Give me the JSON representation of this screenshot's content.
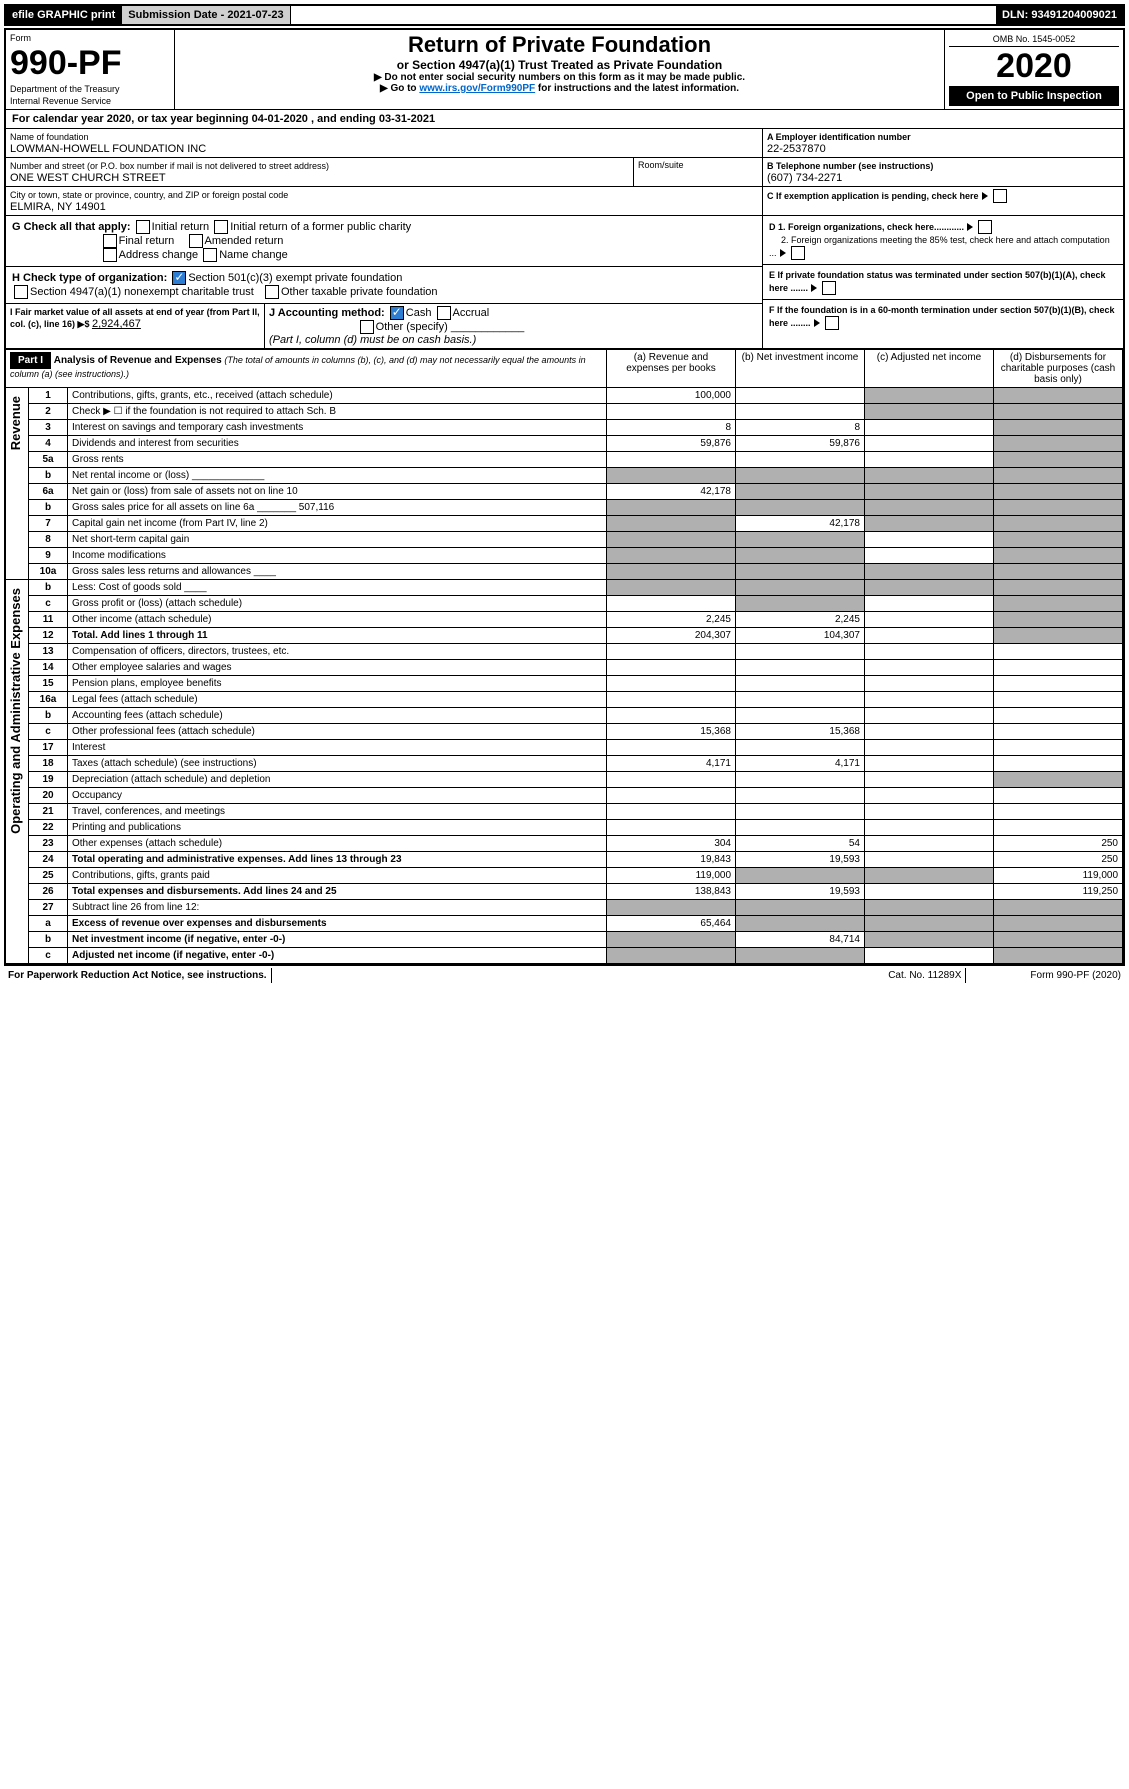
{
  "top": {
    "efile": "efile GRAPHIC print",
    "sub": "Submission Date - 2021-07-23",
    "dln": "DLN: 93491204009021"
  },
  "head": {
    "form": "Form",
    "num": "990-PF",
    "dept": "Department of the Treasury",
    "irs": "Internal Revenue Service",
    "title": "Return of Private Foundation",
    "subtitle": "or Section 4947(a)(1) Trust Treated as Private Foundation",
    "warn": "▶ Do not enter social security numbers on this form as it may be made public.",
    "go": "▶ Go to ",
    "url": "www.irs.gov/Form990PF",
    "go2": " for instructions and the latest information.",
    "omb": "OMB No. 1545-0052",
    "year": "2020",
    "open": "Open to Public Inspection"
  },
  "cal": {
    "pre": "For calendar year 2020, or tax year beginning ",
    "beg": "04-01-2020",
    "mid": " , and ending ",
    "end": "03-31-2021"
  },
  "id": {
    "namelbl": "Name of foundation",
    "name": "LOWMAN-HOWELL FOUNDATION INC",
    "addrlbl": "Number and street (or P.O. box number if mail is not delivered to street address)",
    "addr": "ONE WEST CHURCH STREET",
    "room": "Room/suite",
    "citylbl": "City or town, state or province, country, and ZIP or foreign postal code",
    "city": "ELMIRA, NY  14901",
    "alabel": "A Employer identification number",
    "a": "22-2537870",
    "blabel": "B Telephone number (see instructions)",
    "b": "(607) 734-2271",
    "c": "C If exemption application is pending, check here",
    "d1": "D 1. Foreign organizations, check here............",
    "d2": "2. Foreign organizations meeting the 85% test, check here and attach computation ...",
    "e": "E If private foundation status was terminated under section 507(b)(1)(A), check here .......",
    "f": "F If the foundation is in a 60-month termination under section 507(b)(1)(B), check here ........"
  },
  "g": {
    "lbl": "G Check all that apply:",
    "i1": "Initial return",
    "i2": "Initial return of a former public charity",
    "f": "Final return",
    "a": "Amended return",
    "ac": "Address change",
    "nc": "Name change"
  },
  "h": {
    "lbl": "H Check type of organization:",
    "s1": "Section 501(c)(3) exempt private foundation",
    "s2": "Section 4947(a)(1) nonexempt charitable trust",
    "s3": "Other taxable private foundation"
  },
  "i": {
    "lbl": "I Fair market value of all assets at end of year (from Part II, col. (c), line 16) ▶$ ",
    "val": "2,924,467"
  },
  "j": {
    "lbl": "J Accounting method:",
    "c": "Cash",
    "a": "Accrual",
    "o": "Other (specify)",
    "note": "(Part I, column (d) must be on cash basis.)"
  },
  "p1": {
    "part": "Part I",
    "title": "Analysis of Revenue and Expenses",
    "note": "(The total of amounts in columns (b), (c), and (d) may not necessarily equal the amounts in column (a) (see instructions).)",
    "ca": "(a)   Revenue and expenses per books",
    "cb": "(b)   Net investment income",
    "cc": "(c)   Adjusted net income",
    "cd": "(d)   Disbursements for charitable purposes (cash basis only)",
    "rev": "Revenue",
    "oae": "Operating and Administrative Expenses"
  },
  "rows": [
    {
      "n": "1",
      "t": "Contributions, gifts, grants, etc., received (attach schedule)",
      "a": "100,000",
      "b": "",
      "sh": [
        "c",
        "d"
      ]
    },
    {
      "n": "2",
      "t": "Check ▶ ☐ if the foundation is not required to attach Sch. B",
      "a": "",
      "b": "",
      "sh": [
        "c",
        "d"
      ]
    },
    {
      "n": "3",
      "t": "Interest on savings and temporary cash investments",
      "a": "8",
      "b": "8",
      "sh": [
        "d"
      ]
    },
    {
      "n": "4",
      "t": "Dividends and interest from securities",
      "a": "59,876",
      "b": "59,876",
      "sh": [
        "d"
      ]
    },
    {
      "n": "5a",
      "t": "Gross rents",
      "a": "",
      "b": "",
      "sh": [
        "d"
      ]
    },
    {
      "n": "b",
      "t": "Net rental income or (loss)  _____________",
      "a": "",
      "b": "",
      "sh": [
        "a",
        "b",
        "c",
        "d"
      ]
    },
    {
      "n": "6a",
      "t": "Net gain or (loss) from sale of assets not on line 10",
      "a": "42,178",
      "b": "",
      "sh": [
        "b",
        "c",
        "d"
      ]
    },
    {
      "n": "b",
      "t": "Gross sales price for all assets on line 6a _______ 507,116",
      "a": "",
      "b": "",
      "sh": [
        "a",
        "b",
        "c",
        "d"
      ]
    },
    {
      "n": "7",
      "t": "Capital gain net income (from Part IV, line 2)",
      "a": "",
      "b": "42,178",
      "sh": [
        "a",
        "c",
        "d"
      ]
    },
    {
      "n": "8",
      "t": "Net short-term capital gain",
      "a": "",
      "b": "",
      "sh": [
        "a",
        "b",
        "d"
      ]
    },
    {
      "n": "9",
      "t": "Income modifications",
      "a": "",
      "b": "",
      "sh": [
        "a",
        "b",
        "d"
      ]
    },
    {
      "n": "10a",
      "t": "Gross sales less returns and allowances  ____",
      "a": "",
      "b": "",
      "sh": [
        "a",
        "b",
        "c",
        "d"
      ]
    },
    {
      "n": "b",
      "t": "Less: Cost of goods sold       ____",
      "a": "",
      "b": "",
      "sh": [
        "a",
        "b",
        "c",
        "d"
      ]
    },
    {
      "n": "c",
      "t": "Gross profit or (loss) (attach schedule)",
      "a": "",
      "b": "",
      "sh": [
        "b",
        "d"
      ]
    },
    {
      "n": "11",
      "t": "Other income (attach schedule)",
      "a": "2,245",
      "b": "2,245",
      "sh": [
        "d"
      ]
    },
    {
      "n": "12",
      "t": "Total. Add lines 1 through 11",
      "bold": true,
      "a": "204,307",
      "b": "104,307",
      "sh": [
        "d"
      ]
    },
    {
      "n": "13",
      "t": "Compensation of officers, directors, trustees, etc.",
      "a": "",
      "b": ""
    },
    {
      "n": "14",
      "t": "Other employee salaries and wages",
      "a": "",
      "b": ""
    },
    {
      "n": "15",
      "t": "Pension plans, employee benefits",
      "a": "",
      "b": ""
    },
    {
      "n": "16a",
      "t": "Legal fees (attach schedule)",
      "a": "",
      "b": ""
    },
    {
      "n": "b",
      "t": "Accounting fees (attach schedule)",
      "a": "",
      "b": ""
    },
    {
      "n": "c",
      "t": "Other professional fees (attach schedule)",
      "a": "15,368",
      "b": "15,368"
    },
    {
      "n": "17",
      "t": "Interest",
      "a": "",
      "b": ""
    },
    {
      "n": "18",
      "t": "Taxes (attach schedule) (see instructions)",
      "a": "4,171",
      "b": "4,171"
    },
    {
      "n": "19",
      "t": "Depreciation (attach schedule) and depletion",
      "a": "",
      "b": "",
      "sh": [
        "d"
      ]
    },
    {
      "n": "20",
      "t": "Occupancy",
      "a": "",
      "b": ""
    },
    {
      "n": "21",
      "t": "Travel, conferences, and meetings",
      "a": "",
      "b": ""
    },
    {
      "n": "22",
      "t": "Printing and publications",
      "a": "",
      "b": ""
    },
    {
      "n": "23",
      "t": "Other expenses (attach schedule)",
      "a": "304",
      "b": "54",
      "d": "250"
    },
    {
      "n": "24",
      "t": "Total operating and administrative expenses. Add lines 13 through 23",
      "bold": true,
      "a": "19,843",
      "b": "19,593",
      "d": "250"
    },
    {
      "n": "25",
      "t": "Contributions, gifts, grants paid",
      "a": "119,000",
      "b": "",
      "d": "119,000",
      "sh": [
        "b",
        "c"
      ]
    },
    {
      "n": "26",
      "t": "Total expenses and disbursements. Add lines 24 and 25",
      "bold": true,
      "a": "138,843",
      "b": "19,593",
      "d": "119,250"
    },
    {
      "n": "27",
      "t": "Subtract line 26 from line 12:",
      "a": "",
      "b": "",
      "sh": [
        "a",
        "b",
        "c",
        "d"
      ]
    },
    {
      "n": "a",
      "t": "Excess of revenue over expenses and disbursements",
      "bold": true,
      "a": "65,464",
      "b": "",
      "sh": [
        "b",
        "c",
        "d"
      ]
    },
    {
      "n": "b",
      "t": "Net investment income (if negative, enter -0-)",
      "bold": true,
      "a": "",
      "b": "84,714",
      "sh": [
        "a",
        "c",
        "d"
      ]
    },
    {
      "n": "c",
      "t": "Adjusted net income (if negative, enter -0-)",
      "bold": true,
      "a": "",
      "b": "",
      "sh": [
        "a",
        "b",
        "d"
      ]
    }
  ],
  "foot": {
    "l": "For Paperwork Reduction Act Notice, see instructions.",
    "m": "Cat. No. 11289X",
    "r": "Form 990-PF (2020)"
  }
}
